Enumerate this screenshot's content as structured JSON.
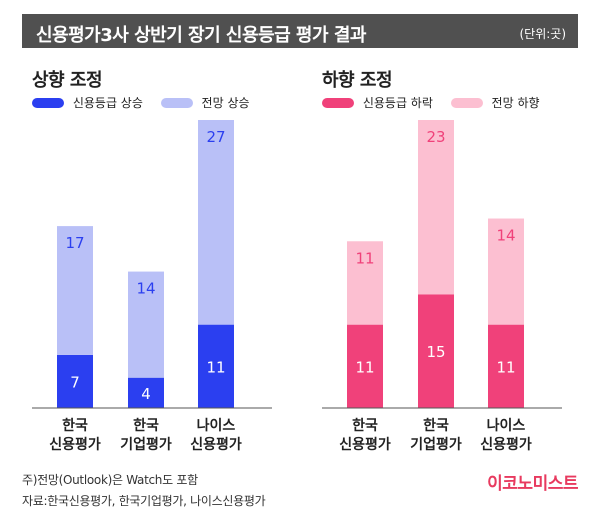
{
  "title": "신용평가3사 상반기 장기 신용등급 평가 결과",
  "unit": "(단위:곳)",
  "colors": {
    "up_rating": "#2b3ff0",
    "up_outlook": "#b9c0f7",
    "down_rating": "#f0417a",
    "down_outlook": "#fcbfd1",
    "brand": "#e83a5f"
  },
  "chart_data": [
    {
      "type": "bar",
      "stacked": true,
      "title": "상향 조정",
      "categories": [
        [
          "한국",
          "신용평가"
        ],
        [
          "한국",
          "기업평가"
        ],
        [
          "나이스",
          "신용평가"
        ]
      ],
      "series": [
        {
          "name": "신용등급 상승",
          "values": [
            7,
            4,
            11
          ],
          "color": "#2b3ff0",
          "label_color": "#ffffff"
        },
        {
          "name": "전망 상승",
          "values": [
            17,
            14,
            27
          ],
          "color": "#b9c0f7",
          "label_color": "#2b3ff0"
        }
      ],
      "ylim": [
        0,
        38
      ],
      "legend": "top-left"
    },
    {
      "type": "bar",
      "stacked": true,
      "title": "하향 조정",
      "categories": [
        [
          "한국",
          "신용평가"
        ],
        [
          "한국",
          "기업평가"
        ],
        [
          "나이스",
          "신용평가"
        ]
      ],
      "series": [
        {
          "name": "신용등급 하락",
          "values": [
            11,
            15,
            11
          ],
          "color": "#f0417a",
          "label_color": "#ffffff"
        },
        {
          "name": "전망 하향",
          "values": [
            11,
            23,
            14
          ],
          "color": "#fcbfd1",
          "label_color": "#f0417a"
        }
      ],
      "ylim": [
        0,
        38
      ],
      "legend": "top-left"
    }
  ],
  "footnotes": [
    "주)전망(Outlook)은 Watch도 포함",
    "자료:한국신용평가, 한국기업평가, 나이스신용평가"
  ],
  "brand": "이코노미스트"
}
